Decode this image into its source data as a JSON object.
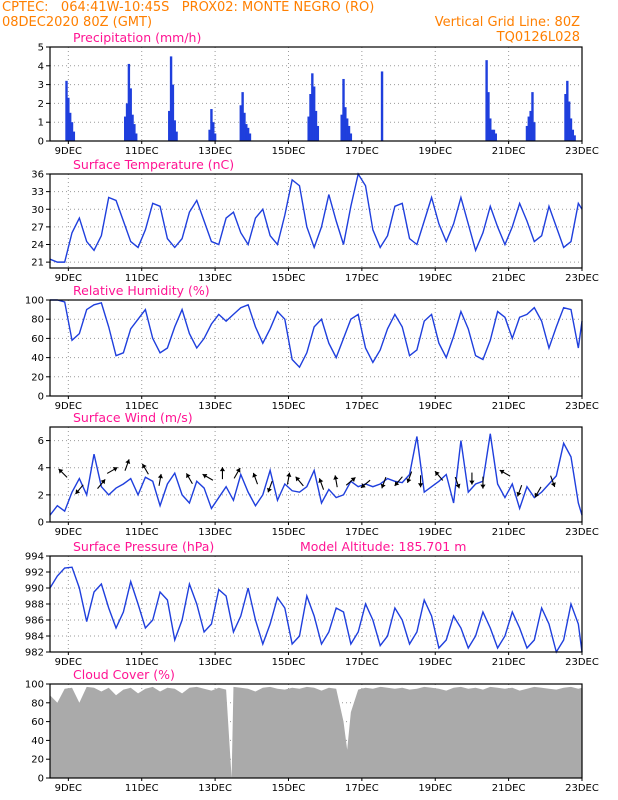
{
  "header": {
    "left1": "CPTEC:   064:41W-10:45S   PROX02: MONTE NEGRO (RO)",
    "left2": "08DEC2020 80Z (GMT)",
    "right1": "Vertical Grid Line: 80Z",
    "right2": "TQ0126L028"
  },
  "colors": {
    "header": "#ff7f00",
    "title": "#ff1493",
    "line": "#1f3fdd",
    "bar": "#1f3fdd",
    "cloud": "#aaaaaa",
    "arrow": "#000000"
  },
  "x_axis": {
    "start": "2020-12-08T12:00Z",
    "end": "2020-12-23T00:00Z",
    "labels": [
      "9DEC",
      "11DEC",
      "13DEC",
      "15DEC",
      "17DEC",
      "19DEC",
      "21DEC",
      "23DEC"
    ]
  },
  "chart_data": [
    {
      "type": "bar",
      "title": "Precipitation (mm/h)",
      "ylim": [
        0,
        5
      ],
      "yticks": [
        0,
        1,
        2,
        3,
        4,
        5
      ],
      "x": [
        8.95,
        9.0,
        9.05,
        9.1,
        9.15,
        10.55,
        10.6,
        10.65,
        10.7,
        10.75,
        10.8,
        10.85,
        11.75,
        11.8,
        11.85,
        11.9,
        11.95,
        12.85,
        12.9,
        12.95,
        13.0,
        13.7,
        13.75,
        13.8,
        13.85,
        13.9,
        13.95,
        15.55,
        15.6,
        15.65,
        15.7,
        15.75,
        15.8,
        16.45,
        16.5,
        16.55,
        16.6,
        16.65,
        16.7,
        17.55,
        20.4,
        20.45,
        20.5,
        20.55,
        20.6,
        20.65,
        21.5,
        21.55,
        21.6,
        21.65,
        21.7,
        22.55,
        22.6,
        22.65,
        22.7,
        22.75,
        22.8
      ],
      "values": [
        3.2,
        2.3,
        1.5,
        1.0,
        0.5,
        1.3,
        2.0,
        4.1,
        2.8,
        1.4,
        0.9,
        0.4,
        1.6,
        4.5,
        3.0,
        1.1,
        0.5,
        0.6,
        1.7,
        1.0,
        0.4,
        1.9,
        2.6,
        1.5,
        0.9,
        0.7,
        0.4,
        1.3,
        2.5,
        3.6,
        2.9,
        1.6,
        0.8,
        1.4,
        3.3,
        1.8,
        1.2,
        0.8,
        0.4,
        3.7,
        4.3,
        2.6,
        1.2,
        0.6,
        0.6,
        0.4,
        0.8,
        1.3,
        1.6,
        2.6,
        1.0,
        2.5,
        3.2,
        2.1,
        1.2,
        0.6,
        0.3
      ]
    },
    {
      "type": "line",
      "title": "Surface Temperature (nC)",
      "ylim": [
        20,
        36
      ],
      "yticks": [
        21,
        24,
        27,
        30,
        33,
        36
      ],
      "x": [
        8.5,
        8.7,
        8.9,
        9.1,
        9.3,
        9.5,
        9.7,
        9.9,
        10.1,
        10.3,
        10.5,
        10.7,
        10.9,
        11.1,
        11.3,
        11.5,
        11.7,
        11.9,
        12.1,
        12.3,
        12.5,
        12.7,
        12.9,
        13.1,
        13.3,
        13.5,
        13.7,
        13.9,
        14.1,
        14.3,
        14.5,
        14.7,
        14.9,
        15.1,
        15.3,
        15.5,
        15.7,
        15.9,
        16.1,
        16.3,
        16.5,
        16.7,
        16.9,
        17.1,
        17.3,
        17.5,
        17.7,
        17.9,
        18.1,
        18.3,
        18.5,
        18.7,
        18.9,
        19.1,
        19.3,
        19.5,
        19.7,
        19.9,
        20.1,
        20.3,
        20.5,
        20.7,
        20.9,
        21.1,
        21.3,
        21.5,
        21.7,
        21.9,
        22.1,
        22.3,
        22.5,
        22.7,
        22.9,
        23.0
      ],
      "values": [
        21.5,
        21.0,
        21.0,
        26.0,
        28.5,
        24.5,
        23.0,
        25.5,
        32.0,
        31.5,
        28.0,
        24.5,
        23.5,
        26.5,
        31.0,
        30.5,
        25.0,
        23.5,
        25.0,
        29.5,
        31.5,
        28.0,
        24.5,
        24.0,
        28.5,
        29.5,
        26.0,
        24.0,
        28.5,
        30.0,
        25.5,
        24.0,
        29.0,
        35.0,
        34.0,
        27.0,
        23.5,
        27.0,
        32.5,
        28.0,
        24.0,
        30.5,
        36.0,
        34.0,
        26.5,
        23.5,
        25.5,
        30.5,
        31.0,
        25.0,
        24.0,
        28.0,
        32.0,
        27.5,
        24.5,
        27.5,
        32.0,
        27.5,
        23.0,
        26.0,
        30.5,
        27.0,
        24.0,
        27.0,
        31.0,
        28.0,
        24.5,
        25.5,
        30.5,
        27.0,
        23.5,
        24.5,
        31.0,
        30.0
      ]
    },
    {
      "type": "line",
      "title": "Relative Humidity (%)",
      "ylim": [
        0,
        100
      ],
      "yticks": [
        0,
        20,
        40,
        60,
        80,
        100
      ],
      "x": [
        8.5,
        8.7,
        8.9,
        9.1,
        9.3,
        9.5,
        9.7,
        9.9,
        10.1,
        10.3,
        10.5,
        10.7,
        10.9,
        11.1,
        11.3,
        11.5,
        11.7,
        11.9,
        12.1,
        12.3,
        12.5,
        12.7,
        12.9,
        13.1,
        13.3,
        13.5,
        13.7,
        13.9,
        14.1,
        14.3,
        14.5,
        14.7,
        14.9,
        15.1,
        15.3,
        15.5,
        15.7,
        15.9,
        16.1,
        16.3,
        16.5,
        16.7,
        16.9,
        17.1,
        17.3,
        17.5,
        17.7,
        17.9,
        18.1,
        18.3,
        18.5,
        18.7,
        18.9,
        19.1,
        19.3,
        19.5,
        19.7,
        19.9,
        20.1,
        20.3,
        20.5,
        20.7,
        20.9,
        21.1,
        21.3,
        21.5,
        21.7,
        21.9,
        22.1,
        22.3,
        22.5,
        22.7,
        22.9,
        23.0
      ],
      "values": [
        100,
        100,
        98,
        58,
        65,
        90,
        95,
        97,
        72,
        42,
        45,
        70,
        80,
        90,
        60,
        45,
        50,
        72,
        90,
        65,
        50,
        60,
        75,
        85,
        78,
        85,
        92,
        95,
        72,
        55,
        70,
        88,
        80,
        38,
        30,
        45,
        72,
        80,
        55,
        40,
        60,
        80,
        85,
        50,
        35,
        48,
        70,
        85,
        72,
        42,
        48,
        78,
        85,
        55,
        40,
        62,
        88,
        70,
        42,
        38,
        58,
        88,
        82,
        60,
        82,
        85,
        92,
        78,
        50,
        72,
        92,
        90,
        50,
        78
      ]
    },
    {
      "type": "line",
      "title": "Surface Wind (m/s)",
      "ylim": [
        0,
        7
      ],
      "yticks": [
        0,
        2,
        4,
        6
      ],
      "x": [
        8.5,
        8.7,
        8.9,
        9.1,
        9.3,
        9.5,
        9.7,
        9.9,
        10.1,
        10.3,
        10.5,
        10.7,
        10.9,
        11.1,
        11.3,
        11.5,
        11.7,
        11.9,
        12.1,
        12.3,
        12.5,
        12.7,
        12.9,
        13.1,
        13.3,
        13.5,
        13.7,
        13.9,
        14.1,
        14.3,
        14.5,
        14.7,
        14.9,
        15.1,
        15.3,
        15.5,
        15.7,
        15.9,
        16.1,
        16.3,
        16.5,
        16.7,
        16.9,
        17.1,
        17.3,
        17.5,
        17.7,
        17.9,
        18.1,
        18.3,
        18.5,
        18.7,
        18.9,
        19.1,
        19.3,
        19.5,
        19.7,
        19.9,
        20.1,
        20.3,
        20.5,
        20.7,
        20.9,
        21.1,
        21.3,
        21.5,
        21.7,
        21.9,
        22.1,
        22.3,
        22.5,
        22.7,
        22.9,
        23.0
      ],
      "values": [
        0.5,
        1.2,
        0.8,
        2.2,
        3.2,
        2.0,
        5.0,
        2.6,
        2.0,
        2.5,
        2.8,
        3.2,
        2.0,
        3.3,
        3.0,
        1.2,
        2.8,
        3.6,
        2.0,
        1.4,
        3.0,
        2.5,
        1.0,
        1.8,
        2.6,
        1.6,
        3.5,
        2.2,
        1.2,
        2.0,
        3.8,
        1.6,
        2.8,
        2.3,
        2.2,
        2.6,
        3.8,
        1.4,
        2.4,
        1.8,
        2.0,
        3.0,
        2.6,
        2.8,
        2.6,
        2.8,
        3.2,
        3.0,
        2.9,
        3.5,
        6.3,
        2.2,
        2.6,
        3.0,
        3.5,
        1.4,
        6.0,
        2.2,
        2.8,
        3.0,
        6.5,
        2.8,
        1.8,
        2.8,
        1.0,
        2.6,
        1.8,
        2.2,
        2.8,
        3.4,
        5.8,
        4.8,
        1.4,
        0.5
      ],
      "arrows": [
        {
          "x": 8.85,
          "y": 3.6,
          "dir_deg": 315
        },
        {
          "x": 9.3,
          "y": 2.4,
          "dir_deg": 220
        },
        {
          "x": 9.9,
          "y": 2.8,
          "dir_deg": 40
        },
        {
          "x": 10.2,
          "y": 3.8,
          "dir_deg": 60
        },
        {
          "x": 10.6,
          "y": 4.2,
          "dir_deg": 20
        },
        {
          "x": 11.1,
          "y": 3.9,
          "dir_deg": 330
        },
        {
          "x": 11.5,
          "y": 3.1,
          "dir_deg": 10
        },
        {
          "x": 12.3,
          "y": 3.2,
          "dir_deg": 330
        },
        {
          "x": 12.8,
          "y": 3.3,
          "dir_deg": 300
        },
        {
          "x": 13.2,
          "y": 3.6,
          "dir_deg": 0
        },
        {
          "x": 13.6,
          "y": 3.6,
          "dir_deg": 30
        },
        {
          "x": 14.1,
          "y": 3.2,
          "dir_deg": 340
        },
        {
          "x": 14.5,
          "y": 2.6,
          "dir_deg": 200
        },
        {
          "x": 15.0,
          "y": 3.2,
          "dir_deg": 10
        },
        {
          "x": 15.3,
          "y": 3.0,
          "dir_deg": 320
        },
        {
          "x": 15.9,
          "y": 2.8,
          "dir_deg": 340
        },
        {
          "x": 16.3,
          "y": 3.0,
          "dir_deg": 350
        },
        {
          "x": 16.7,
          "y": 3.0,
          "dir_deg": 50
        },
        {
          "x": 17.1,
          "y": 2.8,
          "dir_deg": 230
        },
        {
          "x": 17.6,
          "y": 2.9,
          "dir_deg": 200
        },
        {
          "x": 18.0,
          "y": 3.0,
          "dir_deg": 220
        },
        {
          "x": 18.3,
          "y": 3.3,
          "dir_deg": 200
        },
        {
          "x": 18.6,
          "y": 3.0,
          "dir_deg": 180
        },
        {
          "x": 19.1,
          "y": 3.4,
          "dir_deg": 320
        },
        {
          "x": 19.6,
          "y": 2.9,
          "dir_deg": 160
        },
        {
          "x": 20.0,
          "y": 3.2,
          "dir_deg": 180
        },
        {
          "x": 20.3,
          "y": 2.9,
          "dir_deg": 180
        },
        {
          "x": 20.9,
          "y": 3.6,
          "dir_deg": 300
        },
        {
          "x": 21.3,
          "y": 2.3,
          "dir_deg": 200
        },
        {
          "x": 21.8,
          "y": 2.2,
          "dir_deg": 210
        },
        {
          "x": 22.2,
          "y": 3.0,
          "dir_deg": 160
        }
      ]
    },
    {
      "type": "line",
      "title": "Surface Pressure (hPa)",
      "annotation": "Model Altitude: 185.701 m",
      "ylim": [
        982,
        994
      ],
      "yticks": [
        982,
        984,
        986,
        988,
        990,
        992,
        994
      ],
      "x": [
        8.5,
        8.7,
        8.9,
        9.1,
        9.3,
        9.5,
        9.7,
        9.9,
        10.1,
        10.3,
        10.5,
        10.7,
        10.9,
        11.1,
        11.3,
        11.5,
        11.7,
        11.9,
        12.1,
        12.3,
        12.5,
        12.7,
        12.9,
        13.1,
        13.3,
        13.5,
        13.7,
        13.9,
        14.1,
        14.3,
        14.5,
        14.7,
        14.9,
        15.1,
        15.3,
        15.5,
        15.7,
        15.9,
        16.1,
        16.3,
        16.5,
        16.7,
        16.9,
        17.1,
        17.3,
        17.5,
        17.7,
        17.9,
        18.1,
        18.3,
        18.5,
        18.7,
        18.9,
        19.1,
        19.3,
        19.5,
        19.7,
        19.9,
        20.1,
        20.3,
        20.5,
        20.7,
        20.9,
        21.1,
        21.3,
        21.5,
        21.7,
        21.9,
        22.1,
        22.3,
        22.5,
        22.7,
        22.9,
        23.0
      ],
      "values": [
        990.0,
        991.5,
        992.5,
        992.6,
        990.0,
        985.8,
        989.5,
        990.5,
        987.5,
        985.0,
        987.0,
        990.8,
        988.0,
        985.0,
        986.0,
        989.5,
        988.5,
        983.5,
        986.0,
        990.5,
        988.0,
        984.5,
        985.5,
        989.8,
        989.0,
        984.5,
        986.5,
        990.0,
        986.0,
        983.0,
        985.5,
        988.8,
        987.5,
        983.0,
        984.0,
        989.0,
        986.5,
        983.0,
        984.5,
        987.5,
        987.0,
        983.0,
        984.5,
        988.0,
        986.0,
        982.8,
        984.0,
        987.5,
        986.0,
        983.0,
        984.5,
        988.5,
        986.5,
        982.5,
        983.5,
        986.5,
        985.0,
        982.5,
        984.0,
        987.0,
        985.0,
        982.5,
        984.0,
        987.0,
        985.0,
        982.5,
        983.5,
        987.5,
        985.5,
        982.0,
        983.5,
        988.0,
        985.5,
        982.0
      ]
    },
    {
      "type": "area",
      "title": "Cloud Cover (%)",
      "ylim": [
        0,
        100
      ],
      "yticks": [
        0,
        20,
        40,
        60,
        80,
        100
      ],
      "x": [
        8.5,
        8.7,
        8.9,
        9.1,
        9.3,
        9.5,
        9.7,
        9.9,
        10.1,
        10.3,
        10.5,
        10.7,
        10.9,
        11.1,
        11.3,
        11.5,
        11.7,
        11.9,
        12.1,
        12.3,
        12.5,
        12.7,
        12.9,
        13.1,
        13.3,
        13.45,
        13.5,
        13.7,
        13.9,
        14.1,
        14.3,
        14.5,
        14.7,
        14.9,
        15.1,
        15.3,
        15.5,
        15.7,
        15.9,
        16.1,
        16.3,
        16.5,
        16.6,
        16.7,
        16.9,
        17.1,
        17.3,
        17.5,
        17.7,
        17.9,
        18.1,
        18.3,
        18.5,
        18.7,
        18.9,
        19.1,
        19.3,
        19.5,
        19.7,
        19.9,
        20.1,
        20.3,
        20.5,
        20.7,
        20.9,
        21.1,
        21.3,
        21.5,
        21.7,
        21.9,
        22.1,
        22.3,
        22.5,
        22.7,
        22.9,
        23.0
      ],
      "values": [
        88,
        80,
        95,
        96,
        80,
        97,
        96,
        92,
        96,
        88,
        94,
        96,
        90,
        95,
        97,
        92,
        96,
        95,
        90,
        96,
        97,
        95,
        93,
        96,
        94,
        0,
        97,
        96,
        95,
        92,
        96,
        97,
        95,
        94,
        96,
        95,
        97,
        96,
        93,
        96,
        95,
        60,
        30,
        70,
        94,
        96,
        95,
        97,
        96,
        95,
        96,
        94,
        95,
        97,
        96,
        95,
        93,
        96,
        97,
        95,
        96,
        94,
        97,
        96,
        95,
        96,
        93,
        95,
        97,
        96,
        95,
        94,
        96,
        97,
        95,
        96
      ]
    }
  ]
}
